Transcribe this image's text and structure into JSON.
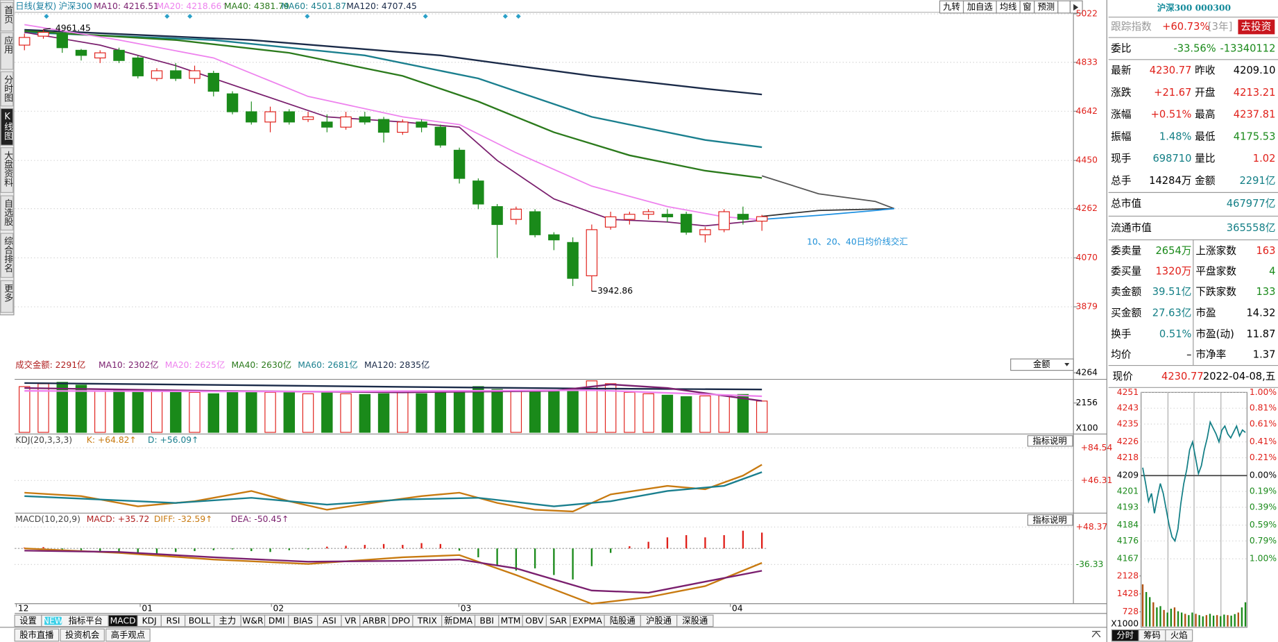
{
  "sidebar": [
    "首页",
    "应用",
    "分时图",
    "K线图",
    "大盘资料",
    "自选股",
    "综合排名",
    "更多"
  ],
  "header": {
    "period": "日线(复权)",
    "name": "沪深300",
    "indicators": [
      "MA10: 4216.51",
      "MA20: 4218.66↑",
      "MA40: 4381.79",
      "MA60: 4501.87",
      "MA120: 4707.45"
    ]
  },
  "toolbar": [
    "九转",
    "加自选",
    "均线",
    "窗",
    "预测"
  ],
  "price_axis": [
    5022,
    4833,
    4642,
    4450,
    4262,
    4070,
    3879
  ],
  "high_label": 4961.45,
  "low_label": 3942.86,
  "note": "10、20、40日均价线交汇",
  "candles": [
    [
      4900,
      4930,
      4945,
      4880
    ],
    [
      4935,
      4950,
      4961.45,
      4925
    ],
    [
      4945,
      4890,
      4950,
      4870
    ],
    [
      4880,
      4860,
      4885,
      4840
    ],
    [
      4850,
      4870,
      4880,
      4830
    ],
    [
      4880,
      4840,
      4890,
      4830
    ],
    [
      4850,
      4780,
      4860,
      4770
    ],
    [
      4770,
      4800,
      4810,
      4760
    ],
    [
      4800,
      4770,
      4830,
      4760
    ],
    [
      4770,
      4800,
      4820,
      4750
    ],
    [
      4790,
      4720,
      4800,
      4700
    ],
    [
      4710,
      4640,
      4720,
      4630
    ],
    [
      4640,
      4600,
      4680,
      4590
    ],
    [
      4600,
      4640,
      4660,
      4560
    ],
    [
      4640,
      4600,
      4650,
      4590
    ],
    [
      4610,
      4620,
      4640,
      4600
    ],
    [
      4600,
      4580,
      4630,
      4560
    ],
    [
      4580,
      4620,
      4640,
      4570
    ],
    [
      4620,
      4600,
      4640,
      4590
    ],
    [
      4610,
      4560,
      4620,
      4520
    ],
    [
      4560,
      4600,
      4610,
      4550
    ],
    [
      4600,
      4580,
      4610,
      4560
    ],
    [
      4580,
      4510,
      4590,
      4500
    ],
    [
      4490,
      4380,
      4500,
      4360
    ],
    [
      4370,
      4280,
      4380,
      4260
    ],
    [
      4270,
      4200,
      4280,
      4070
    ],
    [
      4220,
      4260,
      4270,
      4200
    ],
    [
      4250,
      4160,
      4260,
      4150
    ],
    [
      4160,
      4140,
      4170,
      4100
    ],
    [
      4130,
      3990,
      4150,
      3960
    ],
    [
      4000,
      4180,
      4200,
      3942.86
    ],
    [
      4190,
      4230,
      4250,
      4180
    ],
    [
      4220,
      4240,
      4250,
      4200
    ],
    [
      4240,
      4250,
      4260,
      4220
    ],
    [
      4240,
      4230,
      4260,
      4210
    ],
    [
      4240,
      4170,
      4250,
      4160
    ],
    [
      4160,
      4180,
      4190,
      4130
    ],
    [
      4180,
      4250,
      4260,
      4170
    ],
    [
      4240,
      4220,
      4270,
      4200
    ],
    [
      4213.21,
      4230.77,
      4237.81,
      4175.53
    ]
  ],
  "ma_lines": [
    {
      "color": "#1a2a48",
      "points": [
        [
          0,
          4960
        ],
        [
          12,
          4920
        ],
        [
          22,
          4860
        ],
        [
          30,
          4780
        ],
        [
          36,
          4730
        ],
        [
          39,
          4707.45
        ]
      ]
    },
    {
      "color": "#1a7f8e",
      "points": [
        [
          0,
          4950
        ],
        [
          10,
          4920
        ],
        [
          18,
          4860
        ],
        [
          24,
          4770
        ],
        [
          30,
          4620
        ],
        [
          36,
          4530
        ],
        [
          39,
          4501.87
        ]
      ]
    },
    {
      "color": "#2b7a1c",
      "points": [
        [
          0,
          4955
        ],
        [
          8,
          4920
        ],
        [
          14,
          4870
        ],
        [
          20,
          4780
        ],
        [
          24,
          4680
        ],
        [
          28,
          4560
        ],
        [
          32,
          4470
        ],
        [
          36,
          4410
        ],
        [
          39,
          4381.79
        ]
      ]
    },
    {
      "color": "#ee82ee",
      "points": [
        [
          0,
          4980
        ],
        [
          5,
          4920
        ],
        [
          10,
          4850
        ],
        [
          15,
          4700
        ],
        [
          20,
          4620
        ],
        [
          23,
          4590
        ],
        [
          26,
          4480
        ],
        [
          30,
          4350
        ],
        [
          34,
          4270
        ],
        [
          37,
          4230
        ],
        [
          39,
          4218.66
        ]
      ]
    },
    {
      "color": "#7a1f6e",
      "points": [
        [
          0,
          4950
        ],
        [
          4,
          4900
        ],
        [
          8,
          4820
        ],
        [
          12,
          4720
        ],
        [
          16,
          4620
        ],
        [
          20,
          4600
        ],
        [
          23,
          4580
        ],
        [
          25,
          4450
        ],
        [
          28,
          4300
        ],
        [
          31,
          4220
        ],
        [
          34,
          4210
        ],
        [
          36,
          4195
        ],
        [
          39,
          4216.51
        ]
      ]
    },
    {
      "color": "#555555",
      "points": [
        [
          39,
          4390
        ],
        [
          42,
          4320
        ],
        [
          45,
          4290
        ],
        [
          46,
          4262
        ]
      ]
    },
    {
      "color": "#333333",
      "points": [
        [
          39,
          4232
        ],
        [
          42,
          4255
        ],
        [
          46,
          4262
        ]
      ]
    },
    {
      "color": "#1e90e0",
      "points": [
        [
          39,
          4220
        ],
        [
          42,
          4236
        ],
        [
          45,
          4255
        ],
        [
          46,
          4262
        ]
      ]
    }
  ],
  "volume": {
    "title": "成交金额: 2291亿",
    "indicators": [
      "MA10: 2302亿",
      "MA20: 2625亿",
      "MA40: 2630亿",
      "MA60: 2681亿",
      "MA120: 2835亿"
    ],
    "axis": [
      4264,
      2156
    ],
    "unit": "X100",
    "selector": "金额",
    "values": [
      3300,
      3500,
      3600,
      3400,
      3000,
      3100,
      2900,
      3000,
      2950,
      2900,
      2800,
      3000,
      2950,
      2900,
      2900,
      2800,
      2850,
      2800,
      2750,
      2800,
      2900,
      2800,
      2950,
      2900,
      3300,
      3100,
      3000,
      2950,
      3000,
      3200,
      3700,
      3500,
      2900,
      2800,
      2700,
      2600,
      2650,
      2700,
      2750,
      2291
    ],
    "lines": [
      {
        "color": "#1a2a48",
        "points": [
          [
            0,
            3550
          ],
          [
            10,
            3420
          ],
          [
            20,
            3280
          ],
          [
            30,
            3160
          ],
          [
            39,
            3100
          ]
        ]
      },
      {
        "color": "#7a1f6e",
        "points": [
          [
            0,
            3200
          ],
          [
            10,
            3000
          ],
          [
            20,
            2900
          ],
          [
            28,
            3000
          ],
          [
            31,
            3450
          ],
          [
            34,
            3200
          ],
          [
            39,
            2302
          ]
        ]
      },
      {
        "color": "#ee82ee",
        "points": [
          [
            0,
            3000
          ],
          [
            15,
            2950
          ],
          [
            30,
            3050
          ],
          [
            39,
            2625
          ]
        ]
      }
    ]
  },
  "kdj": {
    "title": "KDJ(20,3,3,3)",
    "indicators": [
      "K: +64.82↑",
      "D: +56.09↑"
    ],
    "button": "指标说明",
    "axis": [
      {
        "value": 84.54,
        "label": "+84.54"
      },
      {
        "value": 46.31,
        "label": "+46.31"
      }
    ],
    "k": [
      [
        0,
        32
      ],
      [
        3,
        28
      ],
      [
        6,
        16
      ],
      [
        9,
        22
      ],
      [
        12,
        34
      ],
      [
        14,
        22
      ],
      [
        16,
        12
      ],
      [
        19,
        22
      ],
      [
        21,
        28
      ],
      [
        23,
        32
      ],
      [
        25,
        20
      ],
      [
        27,
        12
      ],
      [
        29,
        10
      ],
      [
        31,
        30
      ],
      [
        34,
        40
      ],
      [
        36,
        36
      ],
      [
        38,
        52
      ],
      [
        39,
        64.82
      ]
    ],
    "d": [
      [
        0,
        28
      ],
      [
        4,
        24
      ],
      [
        8,
        20
      ],
      [
        12,
        26
      ],
      [
        16,
        18
      ],
      [
        20,
        24
      ],
      [
        24,
        26
      ],
      [
        28,
        16
      ],
      [
        31,
        22
      ],
      [
        34,
        34
      ],
      [
        37,
        40
      ],
      [
        39,
        56.09
      ]
    ]
  },
  "macd": {
    "title": "MACD(10,20,9)",
    "indicators": [
      "MACD: +35.72",
      "DIFF: -32.59↑",
      "DEA: -50.45↑"
    ],
    "button": "指标说明",
    "axis": [
      {
        "value": 48.37,
        "label": "+48.37"
      },
      -36.33
    ],
    "bars": [
      2,
      3,
      -2,
      -4,
      -6,
      -8,
      -10,
      -12,
      -8,
      -6,
      -4,
      -2,
      -6,
      -8,
      -4,
      -2,
      4,
      6,
      8,
      10,
      8,
      12,
      10,
      -5,
      -20,
      -40,
      -50,
      -45,
      -60,
      -70,
      -40,
      -10,
      5,
      15,
      25,
      30,
      25,
      30,
      40,
      35.72
    ],
    "diff": [
      [
        0,
        0
      ],
      [
        5,
        -10
      ],
      [
        10,
        -25
      ],
      [
        15,
        -35
      ],
      [
        20,
        -20
      ],
      [
        23,
        -15
      ],
      [
        26,
        -60
      ],
      [
        30,
        -125
      ],
      [
        33,
        -110
      ],
      [
        36,
        -85
      ],
      [
        39,
        -32.59
      ]
    ],
    "dea": [
      [
        0,
        -5
      ],
      [
        5,
        -8
      ],
      [
        10,
        -20
      ],
      [
        15,
        -30
      ],
      [
        20,
        -28
      ],
      [
        23,
        -25
      ],
      [
        26,
        -45
      ],
      [
        30,
        -95
      ],
      [
        33,
        -100
      ],
      [
        36,
        -75
      ],
      [
        39,
        -50.45
      ]
    ]
  },
  "months": [
    "12",
    "01",
    "02",
    "03",
    "04"
  ],
  "new_badge": "NEW",
  "tabs": [
    "设置",
    "指标平台",
    "MACD",
    "KDJ",
    "RSI",
    "BOLL",
    "主力",
    "W&R",
    "DMI",
    "BIAS",
    "ASI",
    "VR",
    "ARBR",
    "DPO",
    "TRIX",
    "新DMA",
    "BBI",
    "MTM",
    "OBV",
    "SAR",
    "EXPMA",
    "陆股通",
    "沪股通",
    "深股通"
  ],
  "bottom_tabs": [
    "股市直播",
    "投资机会",
    "高手观点"
  ],
  "quote": {
    "title": "沪深300 000300",
    "track": [
      "跟踪指数",
      "+60.73%",
      "[3年]",
      "去投资"
    ],
    "ratio": [
      "委比",
      "-33.56%",
      "-13340112"
    ],
    "grid": [
      [
        [
          "最新",
          "4230.77"
        ],
        [
          "昨收",
          "4209.10"
        ]
      ],
      [
        [
          "涨跌",
          "+21.67"
        ],
        [
          "开盘",
          "4213.21"
        ]
      ],
      [
        [
          "涨幅",
          "+0.51%"
        ],
        [
          "最高",
          "4237.81"
        ]
      ],
      [
        [
          "振幅",
          "1.48%"
        ],
        [
          "最低",
          "4175.53"
        ]
      ],
      [
        [
          "现手",
          "698710"
        ],
        [
          "量比",
          "1.02"
        ]
      ],
      [
        [
          "总手",
          "14284万"
        ],
        [
          "金额",
          "2291亿"
        ]
      ]
    ],
    "cap": [
      [
        "总市值",
        "467977亿"
      ],
      [
        "流通市值",
        "365558亿"
      ]
    ],
    "stats": [
      [
        [
          "委卖量",
          "2654万"
        ],
        [
          "上涨家数",
          "163"
        ]
      ],
      [
        [
          "委买量",
          "1320万"
        ],
        [
          "平盘家数",
          "4"
        ]
      ],
      [
        [
          "卖金额",
          "39.51亿"
        ],
        [
          "下跌家数",
          "133"
        ]
      ],
      [
        [
          "买金额",
          "27.63亿"
        ],
        [
          "市盈",
          "14.32"
        ]
      ],
      [
        [
          "换手",
          "0.51%"
        ],
        [
          "市盈(动)",
          "11.87"
        ]
      ],
      [
        [
          "均价",
          "–"
        ],
        [
          "市净率",
          "1.37"
        ]
      ]
    ],
    "now": [
      "现价",
      "4230.77",
      "2022-04-08,五"
    ]
  },
  "mini": {
    "left_axis": [
      4251,
      4243,
      4235,
      4226,
      4218,
      4209,
      4201,
      4193,
      4184,
      4176,
      4167
    ],
    "right_axis": [
      "1.00%",
      "0.81%",
      "0.61%",
      "0.41%",
      "0.21%",
      "0.00%",
      "0.19%",
      "0.39%",
      "0.59%",
      "0.79%",
      "1.00%"
    ],
    "vol_axis": [
      2128,
      1428,
      728
    ],
    "unit": "X1000",
    "prices": [
      4213,
      4205,
      4196,
      4200,
      4190,
      4198,
      4205,
      4200,
      4192,
      4184,
      4178,
      4176,
      4182,
      4195,
      4205,
      4212,
      4222,
      4226,
      4218,
      4210,
      4214,
      4222,
      4228,
      4236,
      4233,
      4230,
      4226,
      4232,
      4234,
      4230,
      4228,
      4231,
      4234,
      4229,
      4232,
      4230.77
    ],
    "volumes": [
      1800,
      1500,
      1300,
      1100,
      900,
      950,
      800,
      700,
      850,
      900,
      750,
      700,
      650,
      600,
      700,
      650,
      600,
      550,
      600,
      650,
      580,
      600,
      560,
      620,
      600,
      580,
      640,
      700,
      900,
      1100
    ],
    "tabs": [
      "分时",
      "筹码",
      "火焰"
    ]
  }
}
